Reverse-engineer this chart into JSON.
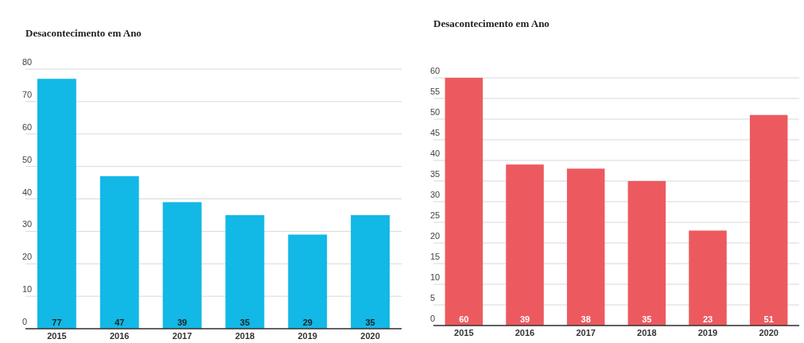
{
  "chart_data": [
    {
      "type": "bar",
      "title": "Desacontecimento em Ano",
      "categories": [
        "2015",
        "2016",
        "2017",
        "2018",
        "2019",
        "2020"
      ],
      "values": [
        77,
        47,
        39,
        35,
        29,
        35
      ],
      "color": "#12b8e6",
      "ylim": [
        0,
        80
      ],
      "yticks": [
        0,
        10,
        20,
        30,
        40,
        50,
        60,
        70,
        80
      ],
      "grid": true,
      "data_labels": true
    },
    {
      "type": "bar",
      "title": "Desacontecimento em Ano",
      "categories": [
        "2015",
        "2016",
        "2017",
        "2018",
        "2019",
        "2020"
      ],
      "values": [
        60,
        39,
        38,
        35,
        23,
        51
      ],
      "color": "#ec5a5f",
      "ylim": [
        0,
        60
      ],
      "yticks": [
        0,
        5,
        10,
        15,
        20,
        25,
        30,
        35,
        40,
        45,
        50,
        55,
        60
      ],
      "grid": true,
      "data_labels": true
    }
  ]
}
